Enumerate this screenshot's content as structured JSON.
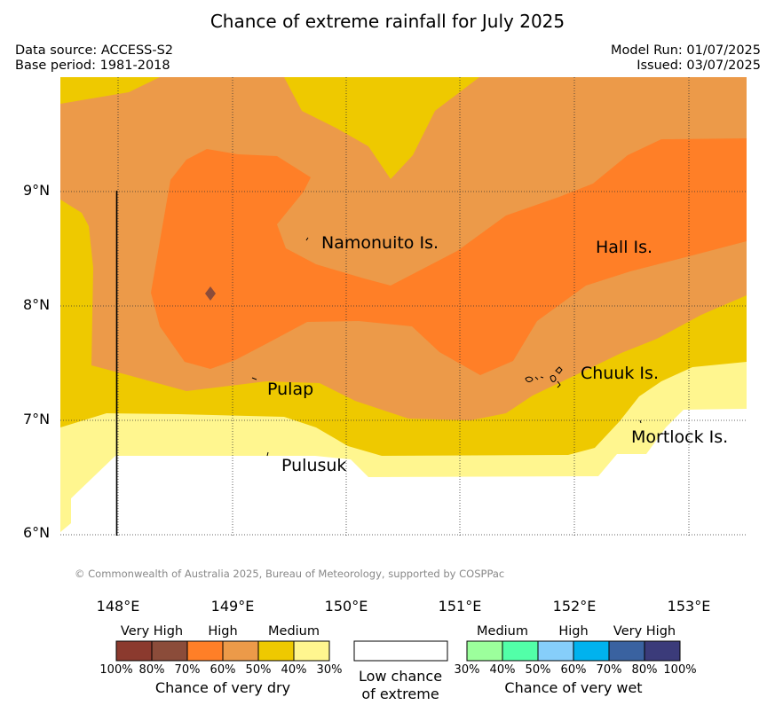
{
  "title": "Chance of extreme rainfall for July 2025",
  "meta": {
    "data_source": "Data source: ACCESS-S2",
    "base_period": "Base period: 1981-2018",
    "model_run": "Model Run: 01/07/2025",
    "issued": "Issued: 03/07/2025"
  },
  "map": {
    "longitude_labels": [
      "148°E",
      "149°E",
      "150°E",
      "151°E",
      "152°E",
      "153°E"
    ],
    "latitude_labels": [
      "9°N",
      "8°N",
      "7°N",
      "6°N"
    ],
    "place_labels": [
      "Namonuito Is.",
      "Hall Is.",
      "Chuuk Is.",
      "Pulap",
      "Mortlock Is.",
      "Pulusuk"
    ],
    "copyright": "© Commonwealth of Australia 2025, Bureau of Meteorology, supported by COSPPac"
  },
  "legend": {
    "dry": {
      "category_labels": [
        "Very High",
        "High",
        "Medium"
      ],
      "tick_labels": [
        "100%",
        "80%",
        "70%",
        "60%",
        "50%",
        "40%",
        "30%"
      ],
      "caption": "Chance of very dry",
      "colors": [
        "#8b3a2e",
        "#8b4c3a",
        "#ff7f27",
        "#ec9a49",
        "#eec900",
        "#fff68f"
      ]
    },
    "neutral": {
      "caption_line1": "Low chance",
      "caption_line2": "of extreme",
      "color": "#ffffff"
    },
    "wet": {
      "category_labels": [
        "Medium",
        "High",
        "Very High"
      ],
      "tick_labels": [
        "30%",
        "40%",
        "50%",
        "60%",
        "70%",
        "80%",
        "100%"
      ],
      "caption": "Chance of very wet",
      "colors": [
        "#9cff9c",
        "#52ffa8",
        "#86cefa",
        "#00b2ee",
        "#3a62a0",
        "#3b3b7a"
      ]
    }
  }
}
